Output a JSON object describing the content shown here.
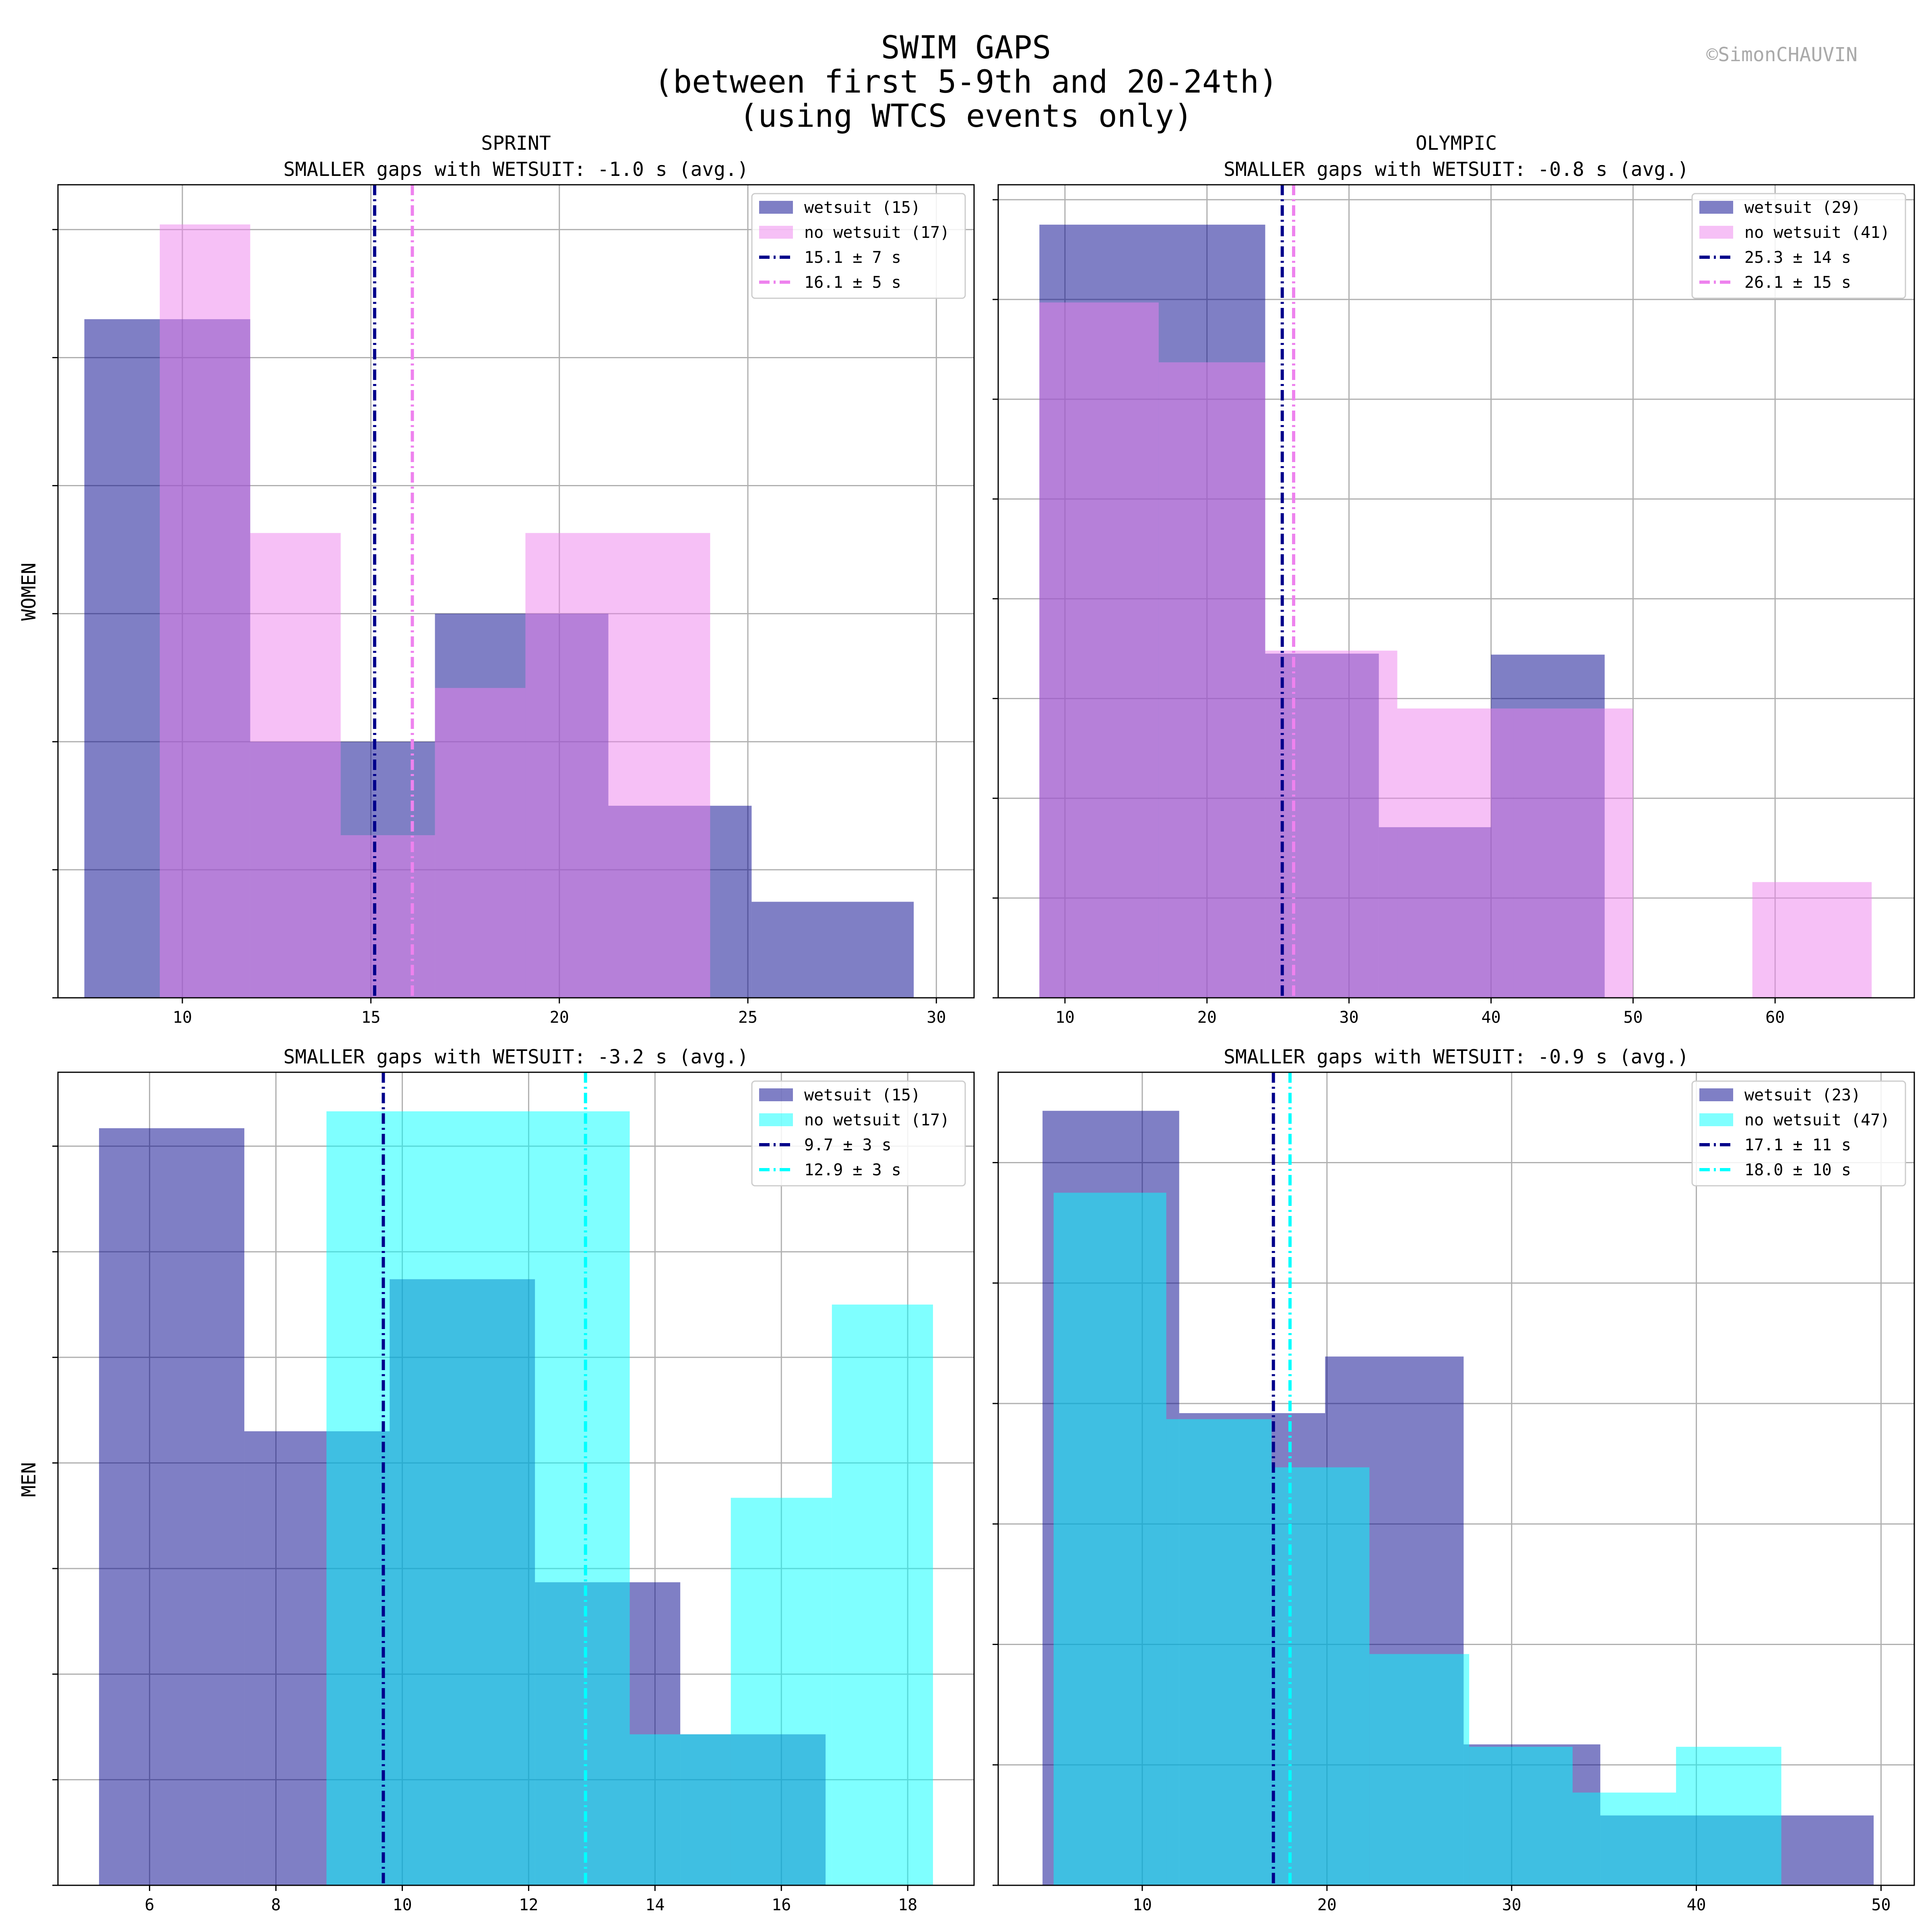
{
  "figure": {
    "title_lines": [
      "SWIM GAPS",
      "(between first 5-9th and 20-24th)",
      "(using WTCS events only)"
    ],
    "watermark": "©SimonCHAUVIN",
    "row_labels": [
      "WOMEN",
      "MEN"
    ],
    "column_titles": [
      "SPRINT",
      "OLYMPIC"
    ]
  },
  "colors": {
    "wetsuit": "#00008B",
    "women_no_wetsuit": "#EE82EE",
    "men_no_wetsuit": "#00FFFF",
    "grid": "#b0b0b0"
  },
  "chart_data": [
    {
      "type": "bar",
      "panel": "women-sprint",
      "title": "SMALLER gaps with WETSUIT: -1.0 s (avg.)",
      "xlim": [
        6.7,
        31.0
      ],
      "ylim": [
        0,
        6.35
      ],
      "xticks": [
        10,
        15,
        20,
        25,
        30
      ],
      "yticks": [
        0,
        1,
        2,
        3,
        4,
        5,
        6
      ],
      "legend_position": "upper-right",
      "series": [
        {
          "name": "wetsuit (15)",
          "color": "#00008B",
          "alpha": 0.5,
          "edges": [
            7.4,
            11.8,
            16.7,
            21.3,
            25.1,
            29.4
          ],
          "values": [
            5.3,
            2.0,
            3.0,
            1.5,
            0.75
          ]
        },
        {
          "name": "no wetsuit (17)",
          "color": "#EE82EE",
          "alpha": 0.5,
          "edges": [
            9.4,
            11.8,
            14.2,
            16.7,
            19.1,
            21.3,
            24.0
          ],
          "values": [
            6.04,
            3.63,
            1.27,
            2.42,
            3.63,
            3.63
          ]
        }
      ],
      "mean_lines": [
        {
          "label": "15.1 ± 7 s",
          "x": 15.1,
          "color": "#00008B"
        },
        {
          "label": "16.1 ± 5 s",
          "x": 16.1,
          "color": "#EE82EE"
        }
      ]
    },
    {
      "type": "bar",
      "panel": "women-olympic",
      "title": "SMALLER gaps with WETSUIT: -0.8 s (avg.)",
      "xlim": [
        5.3,
        69.8
      ],
      "ylim": [
        0,
        8.15
      ],
      "xticks": [
        10,
        20,
        30,
        40,
        50,
        60
      ],
      "yticks": [
        0,
        1,
        2,
        3,
        4,
        5,
        6,
        7,
        8
      ],
      "legend_position": "upper-right",
      "series": [
        {
          "name": "wetsuit (29)",
          "color": "#00008B",
          "alpha": 0.5,
          "edges": [
            8.2,
            24.1,
            32.1,
            40.0,
            48.0,
            56.0
          ],
          "values": [
            7.75,
            3.45,
            1.71,
            3.44,
            0
          ]
        },
        {
          "name": "no wetsuit (41)",
          "color": "#EE82EE",
          "alpha": 0.5,
          "edges": [
            8.2,
            16.6,
            24.1,
            33.4,
            41.6,
            50.0,
            58.4,
            66.8
          ],
          "values": [
            6.97,
            6.37,
            3.48,
            2.9,
            2.9,
            0,
            1.16
          ]
        }
      ],
      "mean_lines": [
        {
          "label": "25.3 ± 14 s",
          "x": 25.3,
          "color": "#00008B"
        },
        {
          "label": "26.1 ± 15 s",
          "x": 26.1,
          "color": "#EE82EE"
        }
      ]
    },
    {
      "type": "bar",
      "panel": "men-sprint",
      "title": "SMALLER gaps with WETSUIT: -3.2 s (avg.)",
      "xlim": [
        4.55,
        19.05
      ],
      "ylim": [
        0,
        7.7
      ],
      "xticks": [
        6,
        8,
        10,
        12,
        14,
        16,
        18
      ],
      "yticks": [
        0,
        1,
        2,
        3,
        4,
        5,
        6,
        7
      ],
      "legend_position": "upper-right",
      "series": [
        {
          "name": "wetsuit (15)",
          "color": "#00008B",
          "alpha": 0.5,
          "edges": [
            5.2,
            7.5,
            9.8,
            12.1,
            14.4,
            16.7
          ],
          "values": [
            7.17,
            4.3,
            5.74,
            2.87,
            1.43
          ]
        },
        {
          "name": "no wetsuit (17)",
          "color": "#00FFFF",
          "alpha": 0.5,
          "edges": [
            8.8,
            13.6,
            15.2,
            16.8,
            18.4
          ],
          "values": [
            7.33,
            1.43,
            3.67,
            5.5
          ]
        }
      ],
      "mean_lines": [
        {
          "label": "9.7 ± 3 s",
          "x": 9.7,
          "color": "#00008B"
        },
        {
          "label": "12.9 ± 3 s",
          "x": 12.9,
          "color": "#00FFFF"
        }
      ]
    },
    {
      "type": "bar",
      "panel": "men-olympic",
      "title": "SMALLER gaps with WETSUIT: -0.9 s (avg.)",
      "xlim": [
        2.2,
        51.8
      ],
      "ylim": [
        0,
        6.75
      ],
      "xticks": [
        10,
        20,
        30,
        40,
        50
      ],
      "yticks": [
        0,
        1,
        2,
        3,
        4,
        5,
        6
      ],
      "legend_position": "upper-right",
      "series": [
        {
          "name": "wetsuit (23)",
          "color": "#00008B",
          "alpha": 0.5,
          "edges": [
            4.6,
            12.0,
            19.9,
            27.4,
            34.8,
            42.2,
            49.6
          ],
          "values": [
            6.43,
            3.92,
            4.39,
            1.17,
            0.58,
            0.58
          ]
        },
        {
          "name": "no wetsuit (47)",
          "color": "#00FFFF",
          "alpha": 0.5,
          "edges": [
            5.2,
            11.3,
            17.0,
            22.3,
            27.7,
            33.3,
            38.9,
            44.6
          ],
          "values": [
            5.75,
            3.87,
            3.47,
            1.92,
            1.15,
            0.77,
            1.15
          ]
        }
      ],
      "mean_lines": [
        {
          "label": "17.1 ± 11 s",
          "x": 17.1,
          "color": "#00008B"
        },
        {
          "label": "18.0 ± 10 s",
          "x": 18.0,
          "color": "#00FFFF"
        }
      ]
    }
  ]
}
